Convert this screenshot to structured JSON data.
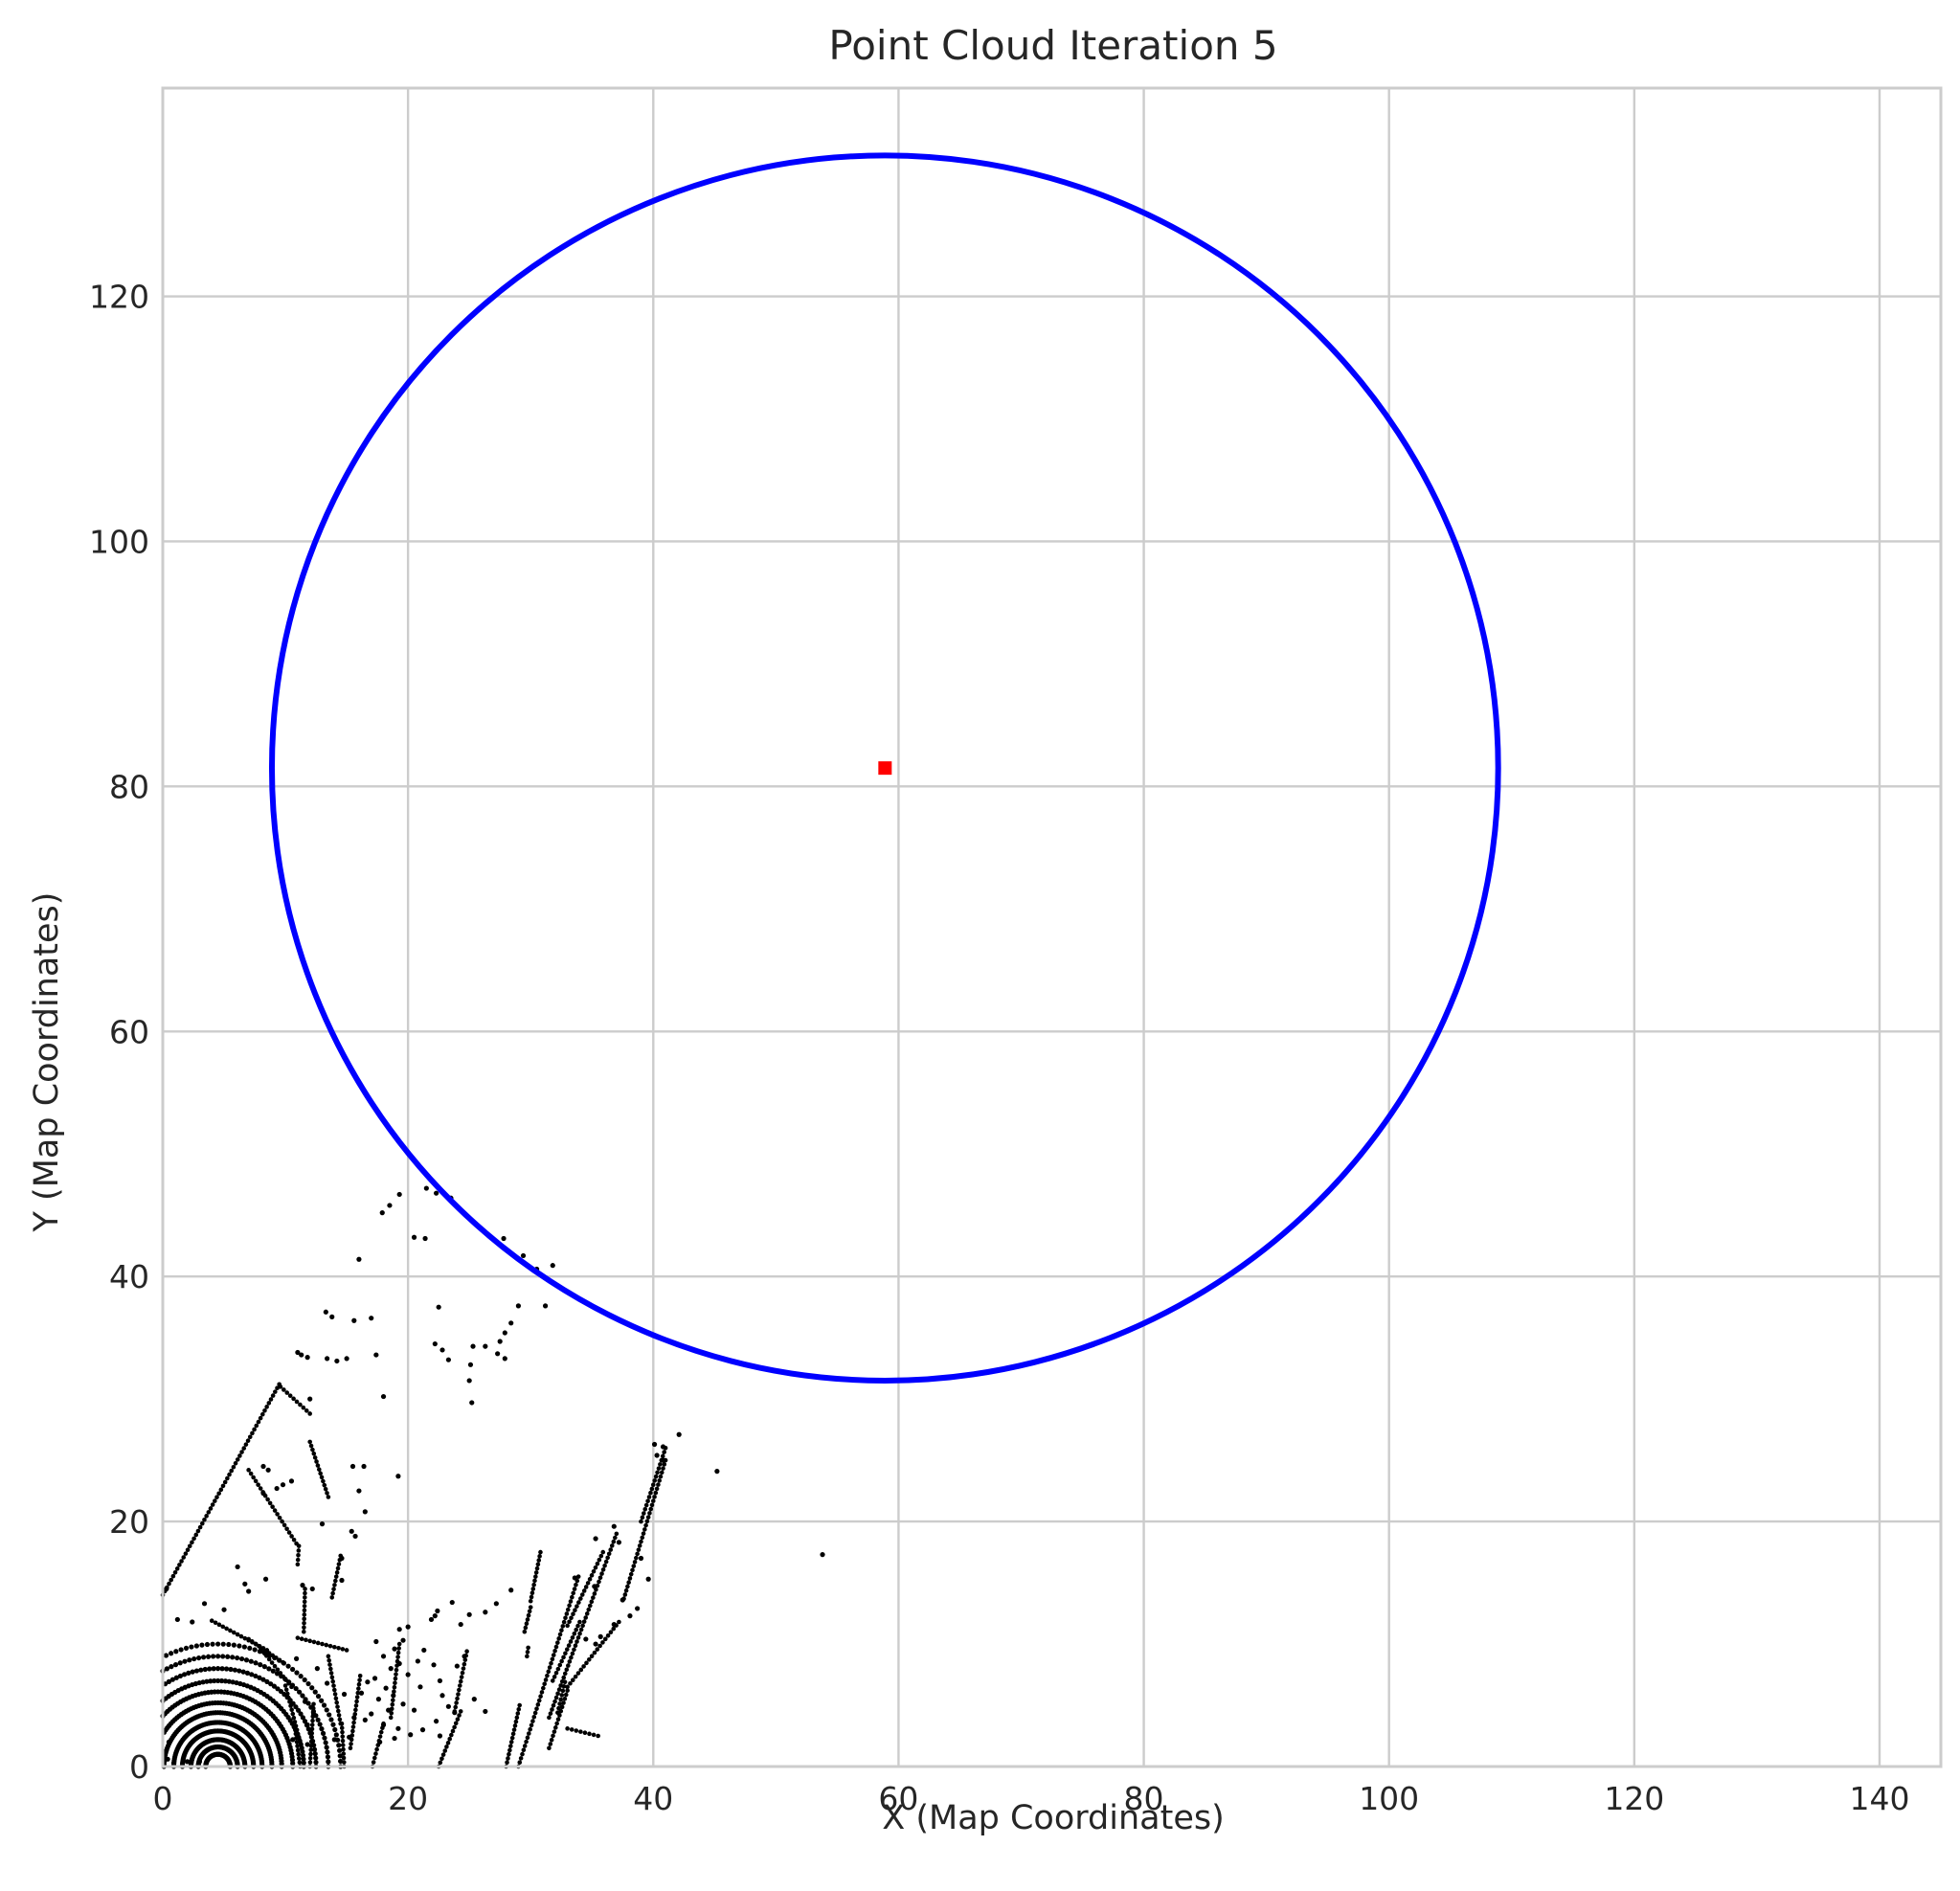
{
  "chart_data": {
    "type": "scatter",
    "title": "Point Cloud Iteration 5",
    "xlabel": "X (Map Coordinates)",
    "ylabel": "Y (Map Coordinates)",
    "xlim": [
      0,
      145
    ],
    "ylim": [
      0,
      137
    ],
    "xticks": [
      0,
      20,
      40,
      60,
      80,
      100,
      120,
      140
    ],
    "yticks": [
      0,
      20,
      40,
      60,
      80,
      100,
      120
    ],
    "grid": true,
    "circle": {
      "center": [
        58.9,
        81.5
      ],
      "radius": 50,
      "color": "#0000ff"
    },
    "center_marker": {
      "x": 58.9,
      "y": 81.5,
      "color": "#ff0000",
      "shape": "square"
    },
    "point_color": "#000000",
    "points": [
      [
        19.3,
        46.7
      ],
      [
        18.5,
        45.8
      ],
      [
        17.9,
        45.2
      ],
      [
        21.5,
        47.2
      ],
      [
        22.3,
        46.8
      ],
      [
        23.5,
        46.4
      ],
      [
        20.5,
        43.2
      ],
      [
        21.4,
        43.1
      ],
      [
        27.8,
        43.1
      ],
      [
        29.4,
        41.7
      ],
      [
        30.5,
        40.6
      ],
      [
        31.8,
        40.9
      ],
      [
        31.2,
        37.6
      ],
      [
        29.0,
        37.6
      ],
      [
        28.4,
        36.2
      ],
      [
        27.9,
        35.4
      ],
      [
        27.5,
        34.7
      ],
      [
        22.5,
        37.5
      ],
      [
        16.0,
        41.4
      ],
      [
        17.0,
        36.6
      ],
      [
        13.3,
        37.1
      ],
      [
        13.8,
        36.7
      ],
      [
        15.6,
        36.4
      ],
      [
        17.4,
        33.6
      ],
      [
        15.0,
        33.3
      ],
      [
        14.2,
        33.1
      ],
      [
        13.4,
        33.3
      ],
      [
        11.3,
        33.6
      ],
      [
        11.0,
        33.8
      ],
      [
        11.8,
        33.4
      ],
      [
        22.2,
        34.5
      ],
      [
        22.8,
        34.0
      ],
      [
        23.3,
        33.2
      ],
      [
        25.3,
        34.3
      ],
      [
        25.1,
        32.8
      ],
      [
        25.0,
        31.5
      ],
      [
        25.2,
        29.7
      ],
      [
        26.3,
        34.3
      ],
      [
        27.3,
        33.7
      ],
      [
        27.9,
        33.3
      ],
      [
        18.0,
        30.2
      ],
      [
        12.0,
        30.0
      ],
      [
        42.1,
        27.1
      ],
      [
        45.2,
        24.1
      ],
      [
        53.8,
        17.3
      ],
      [
        19.2,
        23.7
      ],
      [
        16.4,
        24.5
      ],
      [
        15.5,
        24.5
      ],
      [
        16.0,
        22.5
      ],
      [
        16.5,
        20.8
      ],
      [
        15.4,
        19.2
      ],
      [
        15.7,
        18.8
      ],
      [
        13.0,
        19.8
      ],
      [
        14.6,
        17.0
      ],
      [
        14.6,
        15.2
      ],
      [
        11.4,
        14.8
      ],
      [
        12.2,
        14.5
      ],
      [
        8.4,
        15.3
      ],
      [
        6.1,
        16.3
      ],
      [
        6.7,
        14.9
      ],
      [
        7.0,
        14.3
      ],
      [
        5.0,
        12.8
      ],
      [
        3.4,
        13.3
      ],
      [
        2.4,
        11.8
      ],
      [
        1.2,
        12.0
      ],
      [
        0.3,
        14.5
      ],
      [
        8.2,
        24.5
      ],
      [
        8.6,
        24.2
      ],
      [
        10.5,
        23.3
      ],
      [
        9.8,
        23.0
      ],
      [
        9.3,
        22.7
      ],
      [
        8.2,
        22.3
      ],
      [
        28.4,
        14.4
      ],
      [
        27.2,
        13.3
      ],
      [
        26.3,
        12.6
      ],
      [
        25.0,
        12.4
      ],
      [
        23.6,
        13.4
      ],
      [
        24.3,
        11.6
      ],
      [
        22.4,
        12.7
      ],
      [
        22.2,
        12.3
      ],
      [
        21.9,
        12.0
      ],
      [
        33.6,
        15.4
      ],
      [
        35.2,
        14.7
      ],
      [
        37.5,
        13.6
      ],
      [
        38.7,
        12.9
      ],
      [
        38.1,
        12.3
      ],
      [
        36.8,
        11.6
      ],
      [
        35.7,
        10.6
      ],
      [
        34.5,
        10.4
      ],
      [
        35.3,
        10.0
      ],
      [
        39.0,
        17.0
      ],
      [
        39.6,
        15.3
      ],
      [
        36.8,
        19.6
      ],
      [
        37.2,
        18.3
      ],
      [
        35.3,
        18.6
      ],
      [
        20.0,
        11.4
      ],
      [
        19.3,
        11.2
      ],
      [
        18.9,
        9.6
      ],
      [
        19.6,
        10.3
      ],
      [
        17.4,
        10.2
      ],
      [
        18.0,
        9.0
      ],
      [
        19.3,
        8.4
      ],
      [
        18.6,
        8.0
      ],
      [
        20.0,
        7.5
      ],
      [
        17.3,
        7.2
      ],
      [
        16.7,
        6.9
      ],
      [
        18.2,
        6.4
      ],
      [
        16.2,
        6.0
      ],
      [
        17.6,
        5.5
      ],
      [
        18.8,
        5.8
      ],
      [
        19.6,
        5.1
      ],
      [
        18.4,
        4.6
      ],
      [
        17.0,
        4.3
      ],
      [
        16.5,
        3.8
      ],
      [
        18.0,
        3.4
      ],
      [
        19.2,
        3.1
      ],
      [
        20.2,
        2.6
      ],
      [
        18.9,
        2.3
      ],
      [
        17.7,
        2.0
      ],
      [
        22.1,
        8.3
      ],
      [
        22.6,
        7.0
      ],
      [
        22.8,
        5.8
      ],
      [
        23.3,
        4.9
      ],
      [
        23.8,
        4.4
      ],
      [
        22.3,
        3.7
      ],
      [
        22.6,
        2.5
      ],
      [
        21.3,
        9.5
      ],
      [
        20.8,
        8.6
      ],
      [
        21.0,
        6.5
      ],
      [
        20.5,
        4.6
      ],
      [
        21.2,
        3.0
      ],
      [
        25.4,
        5.5
      ],
      [
        26.3,
        4.5
      ],
      [
        24.6,
        9.0
      ],
      [
        24.0,
        8.2
      ],
      [
        12.6,
        8.0
      ],
      [
        13.4,
        6.8
      ],
      [
        14.8,
        5.9
      ],
      [
        15.6,
        4.0
      ],
      [
        15.2,
        2.4
      ],
      [
        12.3,
        4.3
      ],
      [
        14.0,
        2.2
      ],
      [
        10.9,
        8.8
      ],
      [
        11.6,
        5.3
      ],
      [
        11.8,
        3.4
      ],
      [
        10.6,
        2.2
      ],
      [
        11.8,
        1.8
      ],
      [
        0.4,
        0.6
      ],
      [
        0.9,
        0.3
      ],
      [
        2.0,
        0.4
      ],
      [
        3.0,
        0.4
      ],
      [
        0.5,
        2.0
      ],
      [
        40.1,
        26.3
      ],
      [
        40.8,
        26.1
      ],
      [
        40.3,
        25.4
      ],
      [
        40.8,
        25.0
      ]
    ],
    "point_segments": [
      [
        [
          0.0,
          14.0
        ],
        [
          9.5,
          31.2
        ]
      ],
      [
        [
          9.6,
          31.0
        ],
        [
          12.0,
          28.8
        ]
      ],
      [
        [
          7.0,
          24.2
        ],
        [
          10.9,
          18.2
        ]
      ],
      [
        [
          11.1,
          18.0
        ],
        [
          11.0,
          16.5
        ]
      ],
      [
        [
          11.6,
          14.5
        ],
        [
          11.5,
          11.0
        ]
      ],
      [
        [
          11.0,
          10.5
        ],
        [
          15.0,
          9.5
        ]
      ],
      [
        [
          12.0,
          26.5
        ],
        [
          13.5,
          22.0
        ]
      ],
      [
        [
          14.5,
          17.2
        ],
        [
          13.8,
          13.8
        ]
      ],
      [
        [
          4.0,
          11.9
        ],
        [
          8.5,
          9.5
        ]
      ],
      [
        [
          7.0,
          10.4
        ],
        [
          9.8,
          8.5
        ]
      ],
      [
        [
          8.0,
          9.6
        ],
        [
          10.5,
          6.5
        ]
      ],
      [
        [
          10.0,
          6.6
        ],
        [
          11.2,
          2.0
        ]
      ],
      [
        [
          10.8,
          3.0
        ],
        [
          11.2,
          0.0
        ]
      ],
      [
        [
          12.3,
          5.1
        ],
        [
          12.0,
          0.0
        ]
      ],
      [
        [
          13.5,
          9.0
        ],
        [
          14.5,
          3.5
        ]
      ],
      [
        [
          14.6,
          3.5
        ],
        [
          14.8,
          0.0
        ]
      ],
      [
        [
          30.8,
          17.5
        ],
        [
          30.0,
          13.5
        ]
      ],
      [
        [
          30.0,
          13.0
        ],
        [
          29.5,
          11.0
        ]
      ],
      [
        [
          29.8,
          9.7
        ],
        [
          29.7,
          9.0
        ]
      ],
      [
        [
          33.9,
          15.5
        ],
        [
          29.0,
          0.0
        ]
      ],
      [
        [
          35.9,
          17.5
        ],
        [
          33.0,
          11.5
        ]
      ],
      [
        [
          34.0,
          11.8
        ],
        [
          31.8,
          7.0
        ]
      ],
      [
        [
          32.8,
          6.9
        ],
        [
          32.2,
          4.4
        ]
      ],
      [
        [
          37.0,
          19.0
        ],
        [
          31.5,
          4.0
        ]
      ],
      [
        [
          39.0,
          20.0
        ],
        [
          41.0,
          26.0
        ]
      ],
      [
        [
          41.0,
          25.0
        ],
        [
          37.6,
          13.7
        ]
      ],
      [
        [
          37.2,
          11.8
        ],
        [
          33.0,
          6.5
        ]
      ],
      [
        [
          33.0,
          6.2
        ],
        [
          31.5,
          1.5
        ]
      ],
      [
        [
          35.5,
          2.5
        ],
        [
          33.0,
          3.1
        ]
      ],
      [
        [
          29.1,
          5.0
        ],
        [
          28.0,
          0.0
        ]
      ],
      [
        [
          24.8,
          9.4
        ],
        [
          23.8,
          4.5
        ]
      ],
      [
        [
          24.3,
          4.5
        ],
        [
          22.5,
          0.0
        ]
      ],
      [
        [
          19.3,
          10.0
        ],
        [
          18.6,
          4.0
        ]
      ],
      [
        [
          18.0,
          3.5
        ],
        [
          17.1,
          0.0
        ]
      ],
      [
        [
          16.1,
          7.4
        ],
        [
          15.3,
          1.5
        ]
      ]
    ],
    "dense_arcs": {
      "center": [
        4.5,
        0.0
      ],
      "radii": [
        1.0,
        1.6,
        2.2,
        2.9,
        3.6,
        4.4,
        5.2,
        6.1,
        7.0,
        8.0,
        9.0,
        10.0
      ]
    }
  }
}
